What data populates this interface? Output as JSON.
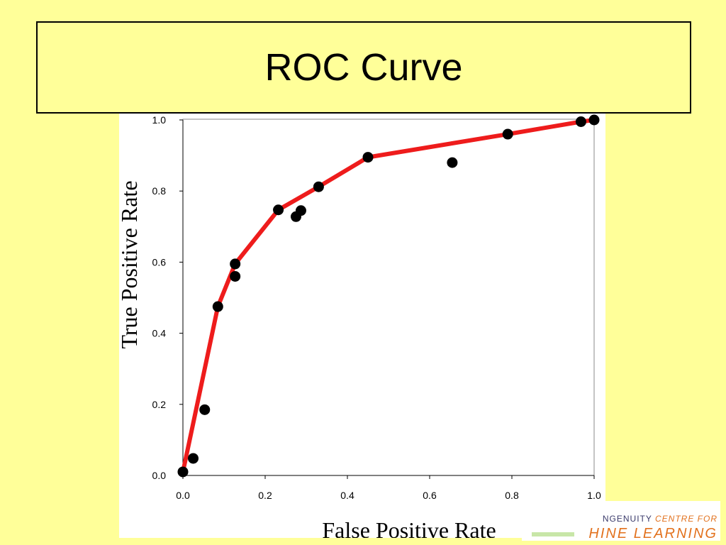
{
  "slide": {
    "title": "ROC Curve",
    "background_color": "#ffff99"
  },
  "logo": {
    "line1_main": "NGENUITY ",
    "line1_accent": "CENTRE FOR",
    "line2": "HINE LEARNING"
  },
  "chart_data": {
    "type": "scatter",
    "xlabel": "False Positive Rate",
    "ylabel": "True Positive Rate",
    "xlim": [
      0.0,
      1.0
    ],
    "ylim": [
      0.0,
      1.0
    ],
    "x_ticks": [
      "0.0",
      "0.2",
      "0.4",
      "0.6",
      "0.8",
      "1.0"
    ],
    "y_ticks": [
      "0.0",
      "0.2",
      "0.4",
      "0.6",
      "0.8",
      "1.0"
    ],
    "grid": false,
    "legend": "none",
    "curve_color": "#ee1c1c",
    "point_color": "#000000",
    "series": [
      {
        "kind": "curve",
        "x": [
          0.0,
          0.085,
          0.127,
          0.232,
          0.33,
          0.45,
          0.79,
          0.968,
          1.0
        ],
        "y": [
          0.01,
          0.475,
          0.595,
          0.747,
          0.812,
          0.895,
          0.96,
          0.995,
          1.0
        ]
      },
      {
        "kind": "points",
        "x": [
          0.0,
          0.025,
          0.053,
          0.085,
          0.127,
          0.127,
          0.232,
          0.275,
          0.287,
          0.33,
          0.45,
          0.655,
          0.79,
          0.968,
          1.0
        ],
        "y": [
          0.01,
          0.048,
          0.185,
          0.475,
          0.595,
          0.56,
          0.747,
          0.728,
          0.745,
          0.812,
          0.895,
          0.88,
          0.96,
          0.995,
          1.0
        ]
      }
    ]
  }
}
